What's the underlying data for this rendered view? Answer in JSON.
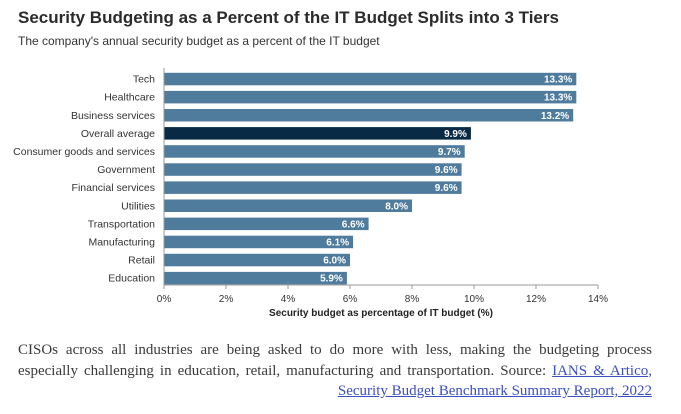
{
  "figure": {
    "title": "Security Budgeting as a Percent of the IT Budget Splits into 3 Tiers",
    "subtitle": "The company's annual security budget as a percent of the IT budget"
  },
  "colors": {
    "bar": "#4f7b9c",
    "highlight": "#082a44",
    "label_text": "#ffffff",
    "axis_text": "#333333"
  },
  "chart_data": {
    "type": "bar",
    "orientation": "horizontal",
    "categories": [
      "Tech",
      "Healthcare",
      "Business services",
      "Overall average",
      "Consumer goods and services",
      "Government",
      "Financial services",
      "Utilities",
      "Transportation",
      "Manufacturing",
      "Retail",
      "Education"
    ],
    "values": [
      13.3,
      13.3,
      13.2,
      9.9,
      9.7,
      9.6,
      9.6,
      8.0,
      6.6,
      6.1,
      6.0,
      5.9
    ],
    "data_labels": [
      "13.3%",
      "13.3%",
      "13.2%",
      "9.9%",
      "9.7%",
      "9.6%",
      "9.6%",
      "8.0%",
      "6.6%",
      "6.1%",
      "6.0%",
      "5.9%"
    ],
    "highlight": "Overall average",
    "xlabel": "Security budget as percentage of IT budget (%)",
    "ylabel": "",
    "xlim": [
      0,
      14
    ],
    "xticks": [
      0,
      2,
      4,
      6,
      8,
      10,
      12,
      14
    ],
    "xtick_labels": [
      "0%",
      "2%",
      "4%",
      "6%",
      "8%",
      "10%",
      "12%",
      "14%"
    ],
    "grid": false,
    "legend": "none"
  },
  "caption": {
    "text": "CISOs across all industries are being asked to do more with less, making the budgeting process especially challenging in education, retail, manufacturing and transportation. Source: ",
    "link_text": "IANS & Artico, Security Budget Benchmark Summary Report, 2022"
  }
}
